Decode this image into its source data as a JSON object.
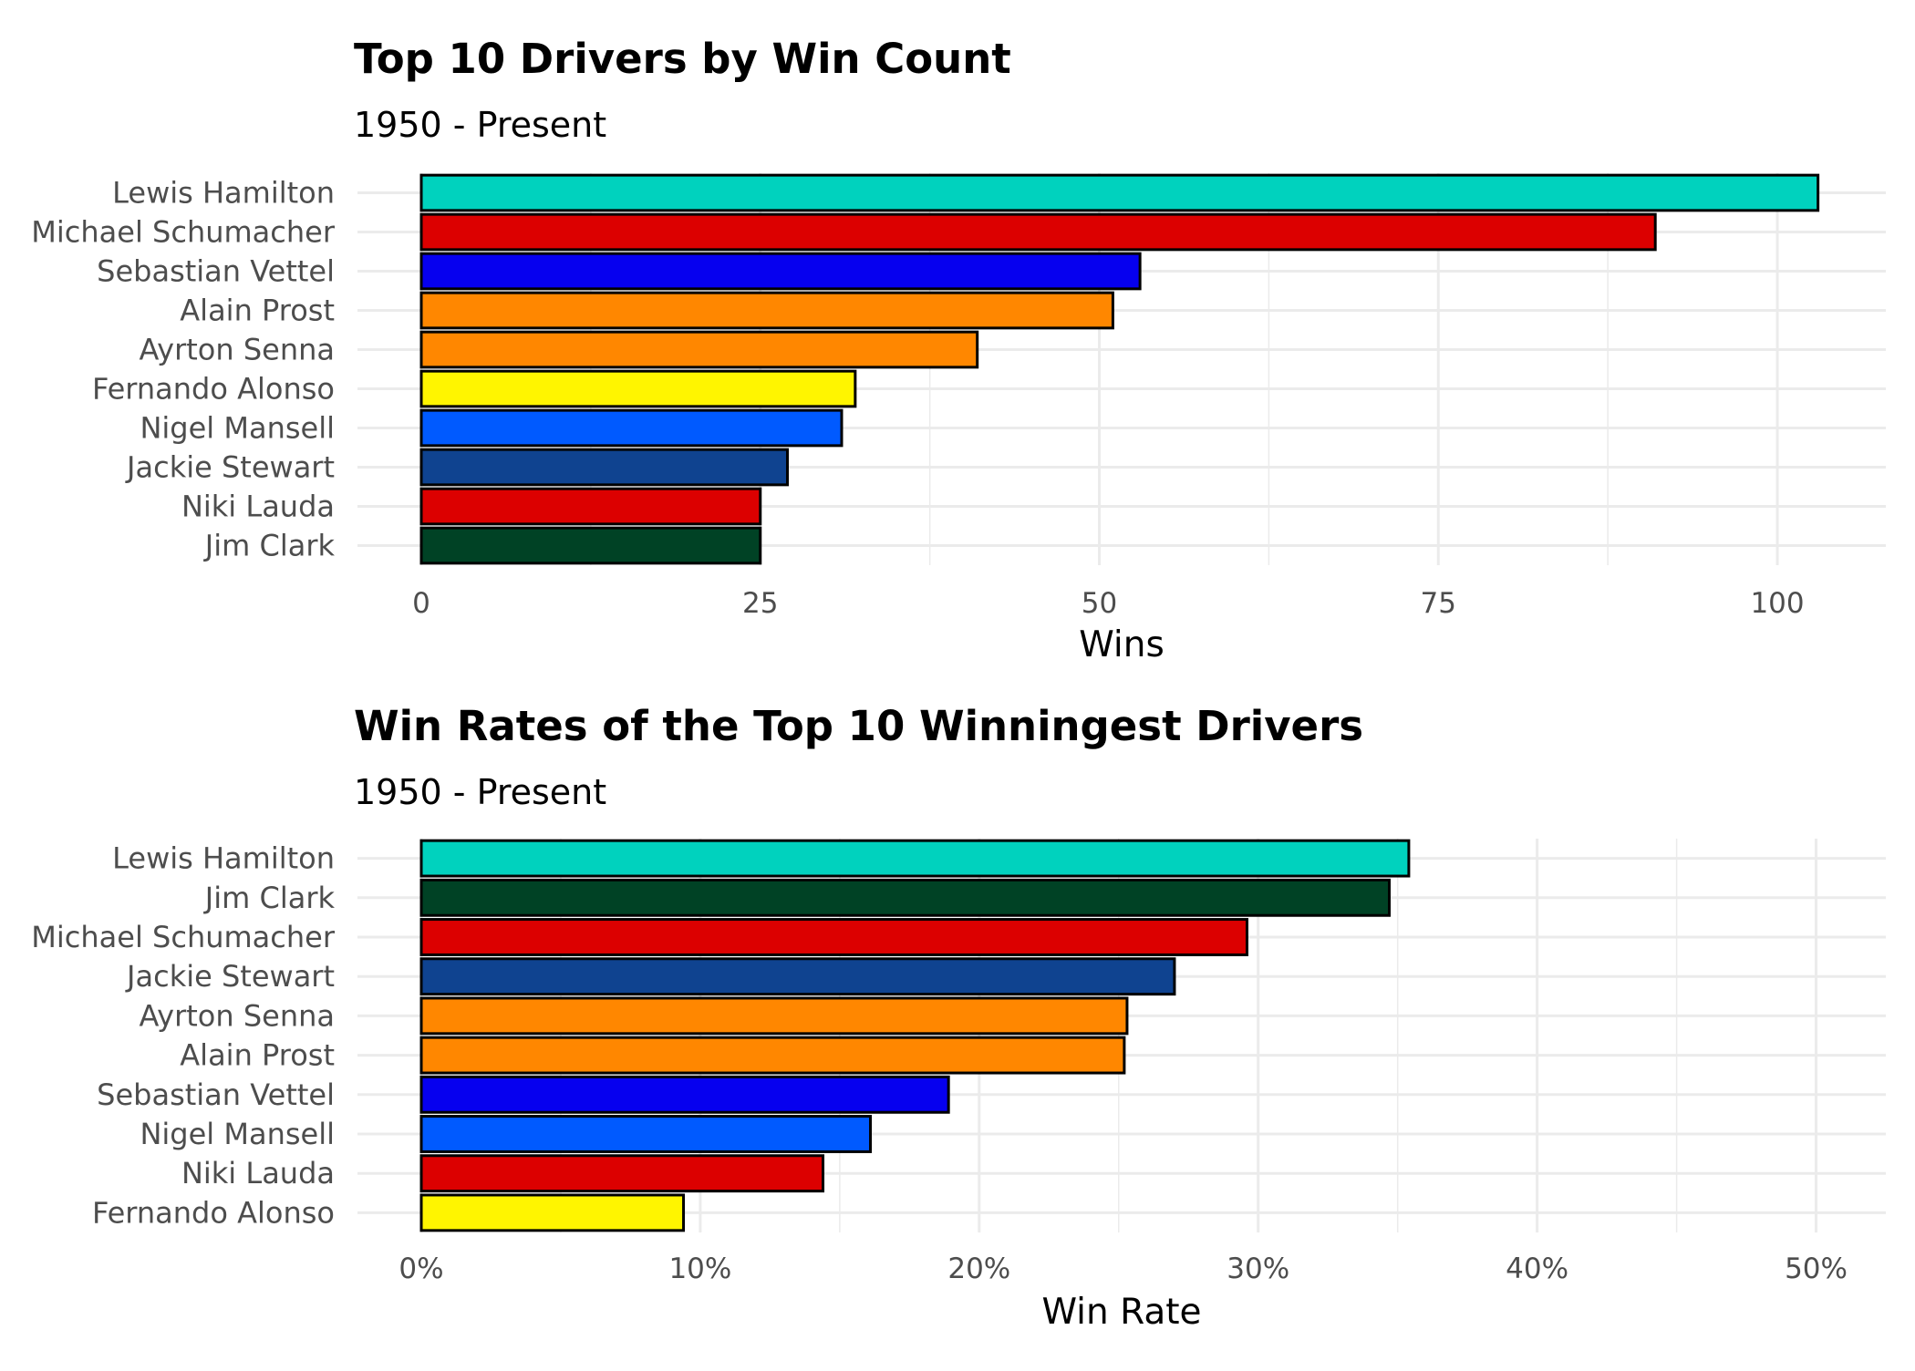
{
  "chart_data": [
    {
      "type": "bar",
      "orientation": "horizontal",
      "title": "Top 10 Drivers by Win Count",
      "subtitle": "1950 - Present",
      "xlabel": "Wins",
      "ylabel": "",
      "xlim": [
        0,
        108
      ],
      "ticks": [
        0,
        25,
        50,
        75,
        100
      ],
      "tick_labels": [
        "0",
        "25",
        "50",
        "75",
        "100"
      ],
      "minor_ticks": [
        12.5,
        37.5,
        62.5,
        87.5
      ],
      "grid": true,
      "legend": "none",
      "categories": [
        "Lewis Hamilton",
        "Michael Schumacher",
        "Sebastian Vettel",
        "Alain Prost",
        "Ayrton Senna",
        "Fernando Alonso",
        "Nigel Mansell",
        "Jackie Stewart",
        "Niki Lauda",
        "Jim Clark"
      ],
      "values": [
        103,
        91,
        53,
        51,
        41,
        32,
        31,
        27,
        25,
        25
      ],
      "colors": [
        "#00D2BE",
        "#DC0000",
        "#0600EF",
        "#FF8700",
        "#FF8700",
        "#FFF500",
        "#005AFF",
        "#0F4390",
        "#DC0000",
        "#004225"
      ]
    },
    {
      "type": "bar",
      "orientation": "horizontal",
      "title": "Win Rates of the Top 10 Winningest Drivers",
      "subtitle": "1950 - Present",
      "xlabel": "Win Rate",
      "ylabel": "",
      "xlim": [
        0,
        0.525
      ],
      "ticks": [
        0,
        0.1,
        0.2,
        0.3,
        0.4,
        0.5
      ],
      "tick_labels": [
        "0%",
        "10%",
        "20%",
        "30%",
        "40%",
        "50%"
      ],
      "minor_ticks": [
        0.05,
        0.15,
        0.25,
        0.35,
        0.45
      ],
      "grid": true,
      "legend": "none",
      "categories": [
        "Lewis Hamilton",
        "Jim Clark",
        "Michael Schumacher",
        "Jackie Stewart",
        "Ayrton Senna",
        "Alain Prost",
        "Sebastian Vettel",
        "Nigel Mansell",
        "Niki Lauda",
        "Fernando Alonso"
      ],
      "values": [
        0.354,
        0.347,
        0.296,
        0.27,
        0.253,
        0.252,
        0.189,
        0.161,
        0.144,
        0.094
      ],
      "colors": [
        "#00D2BE",
        "#004225",
        "#DC0000",
        "#0F4390",
        "#FF8700",
        "#FF8700",
        "#0600EF",
        "#005AFF",
        "#DC0000",
        "#FFF500"
      ]
    }
  ]
}
